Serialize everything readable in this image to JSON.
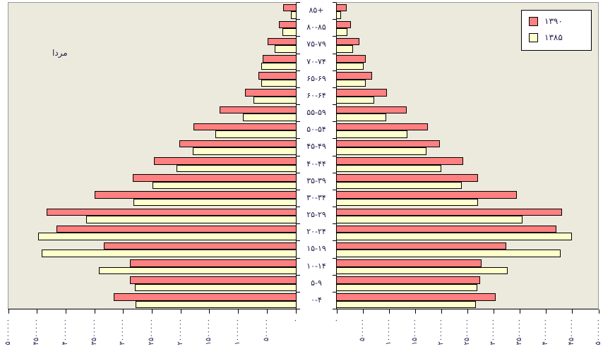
{
  "labels": {
    "side_left": "مردا"
  },
  "colors": {
    "series_1390": "#FF8080",
    "series_1385": "#FFFFCC",
    "plot_background": "#ECE9DD",
    "plot_border": "#999999",
    "axis_line": "#000000",
    "text": "#1f1f4d",
    "legend_background": "#ffffff"
  },
  "chart_data": {
    "type": "bar",
    "subtype": "population-pyramid",
    "orientation": "horizontal",
    "left_panel": "male",
    "right_panel": "female",
    "side_label_left": "مردا",
    "legend_position": "top-right",
    "grid": false,
    "age_groups": [
      "۸۵+",
      "۸۰-۸۵",
      "۷۵-۷۹",
      "۷۰-۷۴",
      "۶۵-۶۹",
      "۶۰-۶۴",
      "۵۵-۵۹",
      "۵۰-۵۴",
      "۴۵-۴۹",
      "۴۰-۴۴",
      "۳۵-۳۹",
      "۳۰-۳۴",
      "۲۵-۲۹",
      "۲۰-۲۴",
      "۱۵-۱۹",
      "۱۰-۱۴",
      "۵-۹",
      "۰-۴"
    ],
    "axis": {
      "min": 0,
      "max": 5000000,
      "step": 500000,
      "left_tick_labels": [
        "۵۰۰۰۰۰۰",
        "۴۵۰۰۰۰۰",
        "۴۰۰۰۰۰۰",
        "۳۵۰۰۰۰۰",
        "۳۰۰۰۰۰۰",
        "۲۵۰۰۰۰۰",
        "۲۰۰۰۰۰۰",
        "۱۵۰۰۰۰۰",
        "۱۰۰۰۰۰۰",
        "۵۰۰۰۰۰",
        "۰"
      ],
      "right_tick_labels": [
        "۰",
        "۵۰۰۰۰۰",
        "۱۰۰۰۰۰۰",
        "۱۵۰۰۰۰۰",
        "۲۰۰۰۰۰۰",
        "۲۵۰۰۰۰۰",
        "۳۰۰۰۰۰۰",
        "۳۵۰۰۰۰۰",
        "۴۰۰۰۰۰۰",
        "۴۵۰۰۰۰۰",
        "۵۰۰۰۰۰۰"
      ]
    },
    "series": [
      {
        "name": "۱۳۹۰",
        "color": "#FF8080",
        "male": [
          230000,
          310000,
          500000,
          590000,
          660000,
          900000,
          1340000,
          1790000,
          2040000,
          2480000,
          2850000,
          3510000,
          4350000,
          4180000,
          3350000,
          2900000,
          2900000,
          3180000
        ],
        "female": [
          200000,
          280000,
          440000,
          570000,
          690000,
          970000,
          1350000,
          1750000,
          1990000,
          2430000,
          2720000,
          3460000,
          4330000,
          4220000,
          3260000,
          2790000,
          2760000,
          3050000
        ]
      },
      {
        "name": "۱۳۸۵",
        "color": "#FFFFCC",
        "male": [
          100000,
          240000,
          380000,
          620000,
          620000,
          750000,
          930000,
          1410000,
          1800000,
          2090000,
          2510000,
          2840000,
          3660000,
          4500000,
          4430000,
          3440000,
          2810000,
          2800000
        ],
        "female": [
          90000,
          220000,
          320000,
          530000,
          570000,
          730000,
          960000,
          1360000,
          1730000,
          2020000,
          2410000,
          2720000,
          3570000,
          4510000,
          4300000,
          3290000,
          2700000,
          2670000
        ]
      }
    ]
  }
}
